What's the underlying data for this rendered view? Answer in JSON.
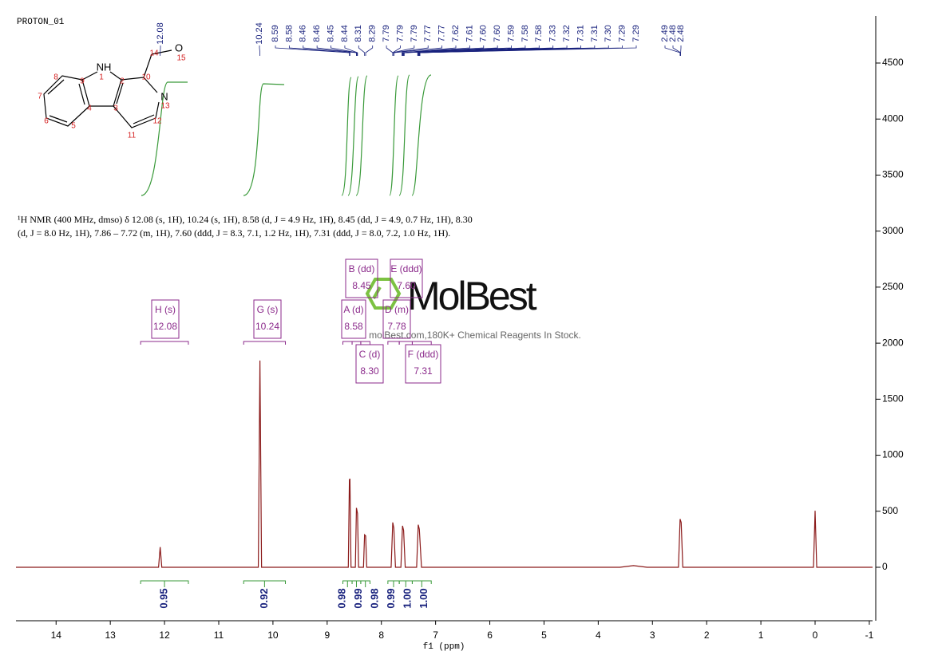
{
  "chart_data": {
    "type": "line",
    "title": "PROTON_01",
    "xlabel": "f1 (ppm)",
    "description": "¹H NMR (400 MHz, dmso) δ 12.08 (s, 1H), 10.24 (s, 1H), 8.58 (d, J = 4.9 Hz, 1H), 8.45 (dd, J = 4.9, 0.7 Hz, 1H), 8.30 (d, J = 8.0 Hz, 1H), 7.86 – 7.72 (m, 1H), 7.60 (ddd, J = 8.3, 7.1, 1.2 Hz, 1H), 7.31 (ddd, J = 8.0, 7.2, 1.0 Hz, 1H).",
    "watermark": {
      "brand": "MolBest",
      "tagline": "molBest.com,180K+ Chemical Reagents In Stock."
    },
    "structure": {
      "atoms": [
        "NH",
        "O",
        "N"
      ],
      "numbering": [
        1,
        2,
        3,
        4,
        5,
        6,
        7,
        8,
        9,
        10,
        11,
        12,
        13,
        14,
        15
      ]
    },
    "color": "#8b1a1a",
    "x": [
      14.74,
      12.11,
      12.08,
      12.05,
      10.27,
      10.24,
      10.21,
      8.61,
      8.59,
      8.58,
      8.56,
      8.48,
      8.46,
      8.44,
      8.42,
      8.33,
      8.31,
      8.29,
      8.27,
      7.82,
      7.79,
      7.77,
      7.74,
      7.64,
      7.61,
      7.59,
      7.56,
      7.35,
      7.32,
      7.3,
      7.26,
      3.6,
      3.35,
      3.1,
      2.52,
      2.49,
      2.47,
      2.44,
      0.03,
      0,
      -0.03,
      -1.06
    ],
    "values": [
      0,
      0,
      180,
      0,
      0,
      1845,
      0,
      0,
      780,
      790,
      0,
      0,
      530,
      480,
      0,
      0,
      290,
      280,
      0,
      0,
      400,
      350,
      0,
      0,
      370,
      330,
      0,
      0,
      380,
      340,
      0,
      0,
      15,
      0,
      0,
      430,
      400,
      0,
      0,
      505,
      0,
      0
    ],
    "xlim": [
      14.74,
      -1.06
    ],
    "xticks": [
      14,
      13,
      12,
      11,
      10,
      9,
      8,
      7,
      6,
      5,
      4,
      3,
      2,
      1,
      0,
      -1
    ],
    "ylim": [
      -477,
      4920
    ],
    "yticks": [
      0,
      500,
      1000,
      1500,
      2000,
      2500,
      3000,
      3500,
      4000,
      4500
    ],
    "peak_labels": [
      12.08,
      10.24,
      8.59,
      8.58,
      8.46,
      8.46,
      8.45,
      8.44,
      8.31,
      8.29,
      7.79,
      7.79,
      7.79,
      7.77,
      7.77,
      7.62,
      7.61,
      {
        "value": 7.6,
        "label": "7.60"
      },
      {
        "value": 7.6,
        "label": "7.60"
      },
      7.59,
      7.58,
      7.58,
      7.33,
      7.32,
      7.31,
      7.31,
      {
        "value": 7.3,
        "label": "7.30"
      },
      7.29,
      7.29,
      2.49,
      2.48,
      2.48
    ],
    "multiplets": [
      {
        "name": "H (s)",
        "shift": 12.08
      },
      {
        "name": "G (s)",
        "shift": 10.24
      },
      {
        "name": "A (d)",
        "shift": 8.58
      },
      {
        "name": "B (dd)",
        "shift": 8.45
      },
      {
        "name": "C (d)",
        "shift": {
          "value": 8.3,
          "label": "8.30"
        }
      },
      {
        "name": "D (m)",
        "shift": 7.78
      },
      {
        "name": "E (ddd)",
        "shift": {
          "value": 7.6,
          "label": "7.60"
        }
      },
      {
        "name": "F (ddd)",
        "shift": 7.31
      }
    ],
    "integrals": [
      {
        "range": [
          12.44,
          11.56
        ],
        "value": 0.95
      },
      {
        "range": [
          10.54,
          9.77
        ],
        "value": 0.92
      },
      {
        "range": [
          8.71,
          8.54
        ],
        "value": 0.98
      },
      {
        "range": [
          8.54,
          8.38
        ],
        "value": 0.99
      },
      {
        "range": [
          8.38,
          8.21
        ],
        "value": 0.98
      },
      {
        "range": [
          7.88,
          7.67
        ],
        "value": 0.99
      },
      {
        "range": [
          7.67,
          7.43
        ],
        "value": {
          "value": 1,
          "label": "1.00"
        }
      },
      {
        "range": [
          7.43,
          7.08
        ],
        "value": {
          "value": 1,
          "label": "1.00"
        }
      }
    ]
  }
}
